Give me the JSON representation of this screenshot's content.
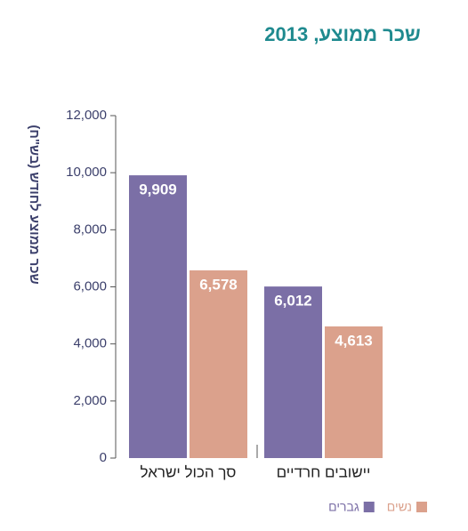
{
  "chart_data": {
    "type": "bar",
    "title": "שכר ממוצע, 2013",
    "y_label": "שכר ממוצע לחודש (בש\"ח)",
    "categories": [
      "סך הכול ישראל",
      "יישובים חרדיים"
    ],
    "series": [
      {
        "name": "גברים",
        "color": "#7b6fa6",
        "values": [
          9909,
          6012
        ],
        "value_labels": [
          "9,909",
          "6,012"
        ]
      },
      {
        "name": "נשים",
        "color": "#dba18c",
        "values": [
          6578,
          4613
        ],
        "value_labels": [
          "6,578",
          "4,613"
        ]
      }
    ],
    "ylim": [
      0,
      12000
    ],
    "yticks": [
      0,
      {
        "value": 2000,
        "label": "2,000"
      },
      {
        "value": 4000,
        "label": "4,000"
      },
      {
        "value": 6000,
        "label": "6,000"
      },
      {
        "value": 8000,
        "label": "8,000"
      },
      {
        "value": 10000,
        "label": "10,000"
      },
      {
        "value": 12000,
        "label": "12,000"
      }
    ],
    "grid": false
  }
}
